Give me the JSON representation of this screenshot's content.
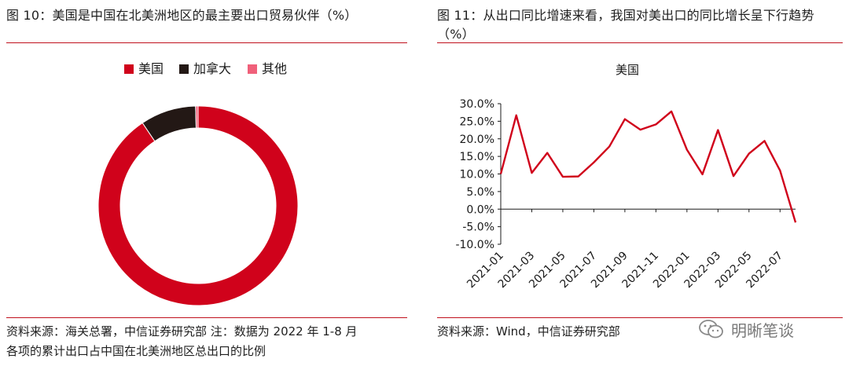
{
  "left": {
    "title": "图 10：美国是中国在北美洲地区的最主要出口贸易伙伴（%）",
    "source_line1": "资料来源：海关总署，中信证券研究部  注：数据为 2022 年 1-8 月",
    "source_line2": "各项的累计出口占中国在北美洲地区总出口的比例"
  },
  "right": {
    "title_line1": "图 11：从出口同比增速来看，我国对美出口的同比增长呈下行趋势",
    "title_line2": "（%）",
    "source": "资料来源：Wind，中信证券研究部"
  },
  "watermark": {
    "text": "明晰笔谈",
    "icon": "wechat-icon"
  },
  "colors": {
    "accent_red": "#d0021b",
    "dark": "#231815",
    "pink": "#f0607a",
    "rule": "#c0101c"
  },
  "chart_data": [
    {
      "type": "pie",
      "donut": true,
      "legend_position": "top",
      "labels": [
        "美国",
        "加拿大",
        "其他"
      ],
      "values": [
        90.6,
        9.0,
        0.4
      ],
      "colors": [
        "#d0021b",
        "#231815",
        "#f0607a"
      ]
    },
    {
      "type": "line",
      "title": "美国",
      "x": [
        "2021-01",
        "2021-02",
        "2021-03",
        "2021-04",
        "2021-05",
        "2021-06",
        "2021-07",
        "2021-08",
        "2021-09",
        "2021-10",
        "2021-11",
        "2021-12",
        "2022-01",
        "2022-02",
        "2022-03",
        "2022-04",
        "2022-05",
        "2022-06",
        "2022-07",
        "2022-08"
      ],
      "xticks": [
        "2021-01",
        "2021-03",
        "2021-05",
        "2021-07",
        "2021-09",
        "2021-11",
        "2022-01",
        "2022-03",
        "2022-05",
        "2022-07"
      ],
      "series": [
        {
          "values": [
            10.0,
            26.7,
            10.3,
            16.0,
            9.2,
            9.3,
            13.3,
            17.8,
            25.6,
            22.6,
            24.1,
            27.8,
            16.9,
            9.9,
            22.5,
            9.4,
            15.8,
            19.4,
            11.0,
            -3.8
          ],
          "color": "#d0021b"
        }
      ],
      "yticks": [
        "30.0%",
        "25.0%",
        "20.0%",
        "15.0%",
        "10.0%",
        "5.0%",
        "0.0%",
        "-5.0%",
        "-10.0%"
      ],
      "ylim": [
        -10,
        30
      ],
      "grid": false
    }
  ]
}
